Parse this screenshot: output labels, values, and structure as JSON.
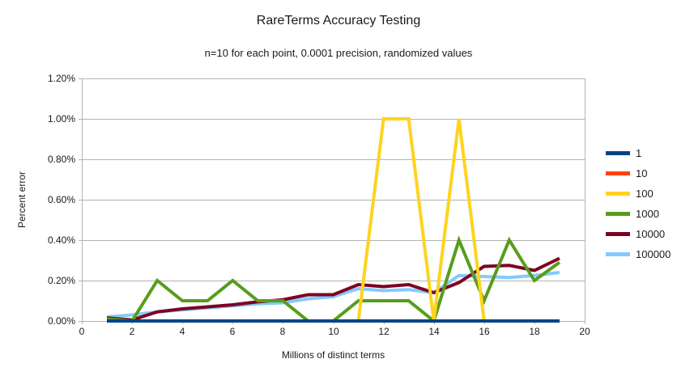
{
  "chart_data": {
    "type": "line",
    "title": "RareTerms Accuracy Testing",
    "subtitle": "n=10 for each point, 0.0001 precision, randomized values",
    "xlabel": "Millions of distinct terms",
    "ylabel": "Percent error",
    "xlim": [
      0,
      20
    ],
    "ylim_percent": [
      0,
      1.2
    ],
    "grid": true,
    "legend_position": "right",
    "x_tick_labels": [
      "0",
      "2",
      "4",
      "6",
      "8",
      "10",
      "12",
      "14",
      "16",
      "18",
      "20"
    ],
    "x_tick_values": [
      0,
      2,
      4,
      6,
      8,
      10,
      12,
      14,
      16,
      18,
      20
    ],
    "y_tick_labels": [
      "0.00%",
      "0.20%",
      "0.40%",
      "0.60%",
      "0.80%",
      "1.00%",
      "1.20%"
    ],
    "y_tick_values_percent": [
      0.0,
      0.2,
      0.4,
      0.6,
      0.8,
      1.0,
      1.2
    ],
    "x": [
      1,
      2,
      3,
      4,
      5,
      6,
      7,
      8,
      9,
      10,
      11,
      12,
      13,
      14,
      15,
      16,
      17,
      18,
      19
    ],
    "series": [
      {
        "name": "1",
        "color": "#004586",
        "values_percent": [
          0,
          0,
          0,
          0,
          0,
          0,
          0,
          0,
          0,
          0,
          0,
          0,
          0,
          0,
          0,
          0,
          0,
          0,
          0
        ]
      },
      {
        "name": "10",
        "color": "#FF420E",
        "values_percent": [
          0,
          0,
          0,
          0,
          0,
          0,
          0,
          0,
          0,
          0,
          0,
          0,
          0,
          0,
          0,
          0,
          0,
          0,
          0
        ]
      },
      {
        "name": "100",
        "color": "#FFD320",
        "values_percent": [
          0,
          0,
          0,
          0,
          0,
          0,
          0,
          0,
          0,
          0,
          0,
          1.0,
          1.0,
          0,
          1.0,
          0,
          0,
          0,
          0
        ]
      },
      {
        "name": "1000",
        "color": "#579D1C",
        "values_percent": [
          0.01,
          0,
          0.2,
          0.1,
          0.1,
          0.2,
          0.1,
          0.1,
          0,
          0,
          0.1,
          0.1,
          0.1,
          0,
          0.4,
          0.1,
          0.4,
          0.2,
          0.29
        ]
      },
      {
        "name": "10000",
        "color": "#7E0021",
        "values_percent": [
          0.015,
          0.005,
          0.045,
          0.06,
          0.07,
          0.08,
          0.095,
          0.105,
          0.13,
          0.13,
          0.18,
          0.17,
          0.18,
          0.14,
          0.19,
          0.27,
          0.275,
          0.25,
          0.31
        ]
      },
      {
        "name": "100000",
        "color": "#83CAFF",
        "values_percent": [
          0.02,
          0.03,
          0.045,
          0.055,
          0.065,
          0.075,
          0.085,
          0.09,
          0.11,
          0.12,
          0.16,
          0.15,
          0.155,
          0.14,
          0.225,
          0.22,
          0.215,
          0.225,
          0.24
        ]
      }
    ],
    "colors": {
      "grid": "#b3b3b3",
      "axis": "#b3b3b3",
      "text": "#1a1a1a"
    }
  }
}
